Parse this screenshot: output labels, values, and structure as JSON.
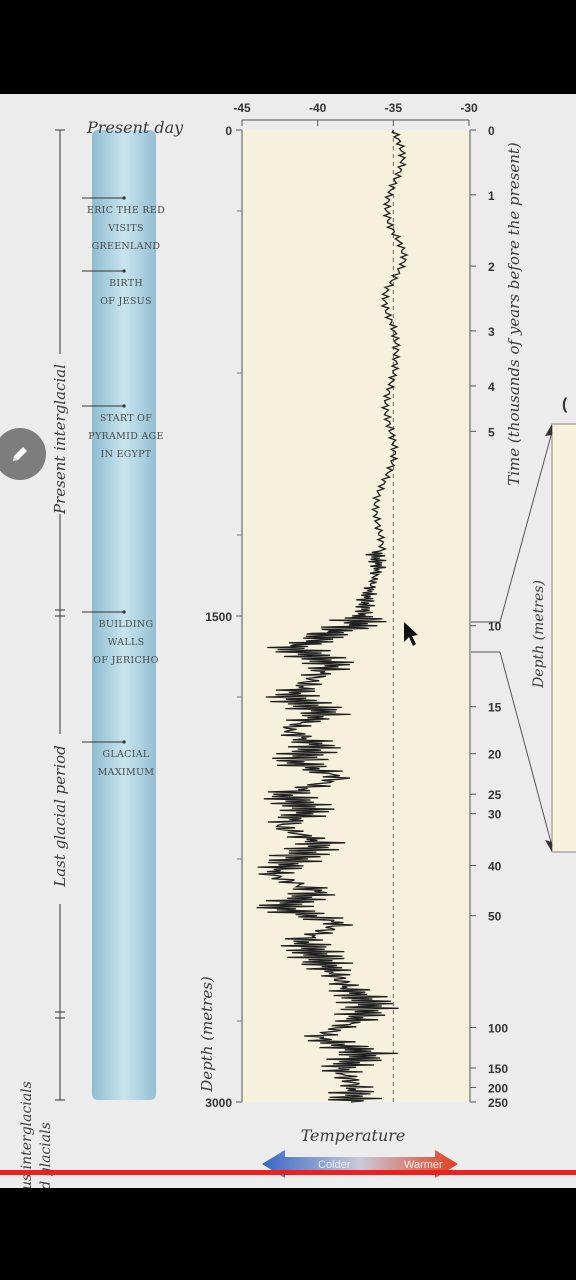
{
  "chart_data": {
    "type": "line",
    "title": "",
    "xlabel": "Temperature",
    "ylabel_left": "Depth (metres)",
    "ylabel_right": "Time (thousands of years before the present)",
    "x_ticks": [
      "-45",
      "-40",
      "-35",
      "-30"
    ],
    "xlim": [
      -45,
      -30
    ],
    "depth_ticks": [
      "0",
      "1500",
      "3000"
    ],
    "ylim_depth": [
      0,
      3000
    ],
    "time_ticks": [
      "0",
      "1",
      "2",
      "3",
      "4",
      "5",
      "10",
      "15",
      "20",
      "25",
      "30",
      "40",
      "50",
      "100",
      "150",
      "200",
      "250"
    ],
    "reference_x": -35,
    "arrow_colder": "Colder",
    "arrow_warmer": "Warmer",
    "inset_label": "Depth (metres)",
    "inset_tick": "(",
    "series": [
      {
        "depth": [
          0,
          100,
          200,
          300,
          400,
          500,
          600,
          700,
          800,
          900,
          1000,
          1100,
          1200,
          1300,
          1350,
          1400,
          1450,
          1500,
          1530,
          1560,
          1600,
          1650,
          1700,
          1750,
          1800,
          1850,
          1900,
          1950,
          2000,
          2050,
          2100,
          2150,
          2200,
          2250,
          2300,
          2350,
          2400,
          2450,
          2500,
          2550,
          2600,
          2650,
          2700,
          2750,
          2800,
          2850,
          2900,
          2950,
          3000
        ],
        "temperature": [
          -35,
          -34.8,
          -34.9,
          -35.1,
          -34.7,
          -35.2,
          -34.9,
          -35.3,
          -35,
          -35.1,
          -35.4,
          -35.6,
          -35.8,
          -36.2,
          -36,
          -36.4,
          -36.8,
          -37,
          -37.5,
          -40,
          -41.5,
          -39,
          -40.5,
          -41.8,
          -39.5,
          -42,
          -40,
          -41.5,
          -38.5,
          -42.2,
          -40.5,
          -42.5,
          -39.8,
          -41.5,
          -43,
          -40,
          -42.5,
          -38.5,
          -41,
          -40,
          -39,
          -38,
          -36.5,
          -37.5,
          -40,
          -36.8,
          -38.5,
          -37.5,
          -37.8
        ]
      }
    ],
    "legend": "none",
    "grid": false
  },
  "header": {
    "present_day": "Present day"
  },
  "events": [
    {
      "label": "Eric the Red visits Greenland",
      "lines": [
        "Eric the Red",
        "visits",
        "Greenland"
      ]
    },
    {
      "label": "Birth of Jesus",
      "lines": [
        "Birth",
        "of Jesus"
      ]
    },
    {
      "label": "Start of Pyramid Age in Egypt",
      "lines": [
        "Start of",
        "Pyramid Age",
        "in Egypt"
      ]
    },
    {
      "label": "Building walls of Jericho",
      "lines": [
        "Building",
        "walls",
        "of Jericho"
      ]
    },
    {
      "label": "Glacial maximum",
      "lines": [
        "Glacial",
        "maximum"
      ]
    }
  ],
  "periods": {
    "present_interglacial": "Present interglacial",
    "last_glacial": "Last glacial period",
    "previous_line1": "vious interglacials",
    "previous_line2": "d glacials"
  },
  "colors": {
    "plot_bg": "#f5f1dc",
    "ice_core": "#a9cedd",
    "line": "#1f1f1f",
    "colder": "#3a6ec9",
    "warmer": "#d9452b"
  }
}
